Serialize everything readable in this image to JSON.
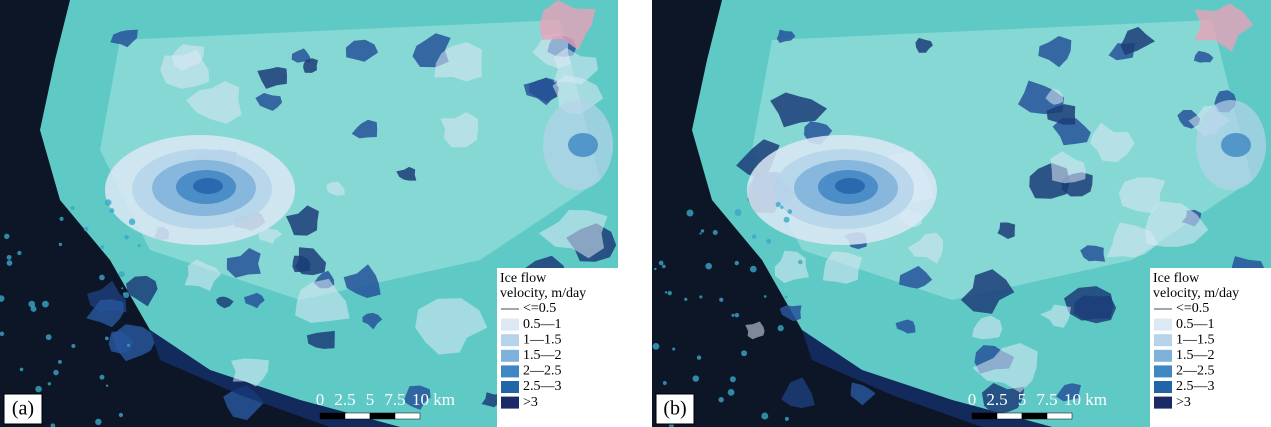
{
  "panels": [
    {
      "label": "(a)",
      "legend": {
        "title": [
          "Ice flow",
          "velocity, m/day"
        ],
        "items": [
          {
            "label": "<=0.5",
            "color": "#7f8c8d"
          },
          {
            "label": "0.5—1",
            "color": "#dce9f5"
          },
          {
            "label": "1—1.5",
            "color": "#b5d3ea"
          },
          {
            "label": "1.5—2",
            "color": "#7fb2da"
          },
          {
            "label": "2—2.5",
            "color": "#3f86c3"
          },
          {
            "label": "2.5—3",
            "color": "#2264a8"
          },
          {
            "label": ">3",
            "color": "#1b2a66"
          }
        ]
      },
      "scale": [
        "0",
        "2.5",
        "5",
        "7.5",
        "10 km"
      ]
    },
    {
      "label": "(b)",
      "legend": {
        "title": [
          "Ice flow",
          "velocity, m/day"
        ],
        "items": [
          {
            "label": "<=0.5",
            "color": "#7f8c8d"
          },
          {
            "label": "0.5—1",
            "color": "#dce9f5"
          },
          {
            "label": "1—1.5",
            "color": "#b5d3ea"
          },
          {
            "label": "1.5—2",
            "color": "#7fb2da"
          },
          {
            "label": "2—2.5",
            "color": "#3f86c3"
          },
          {
            "label": "2.5—3",
            "color": "#2264a8"
          },
          {
            "label": ">3",
            "color": "#1b2a66"
          }
        ]
      },
      "scale": [
        "0",
        "2.5",
        "5",
        "7.5",
        "10 km"
      ]
    }
  ]
}
